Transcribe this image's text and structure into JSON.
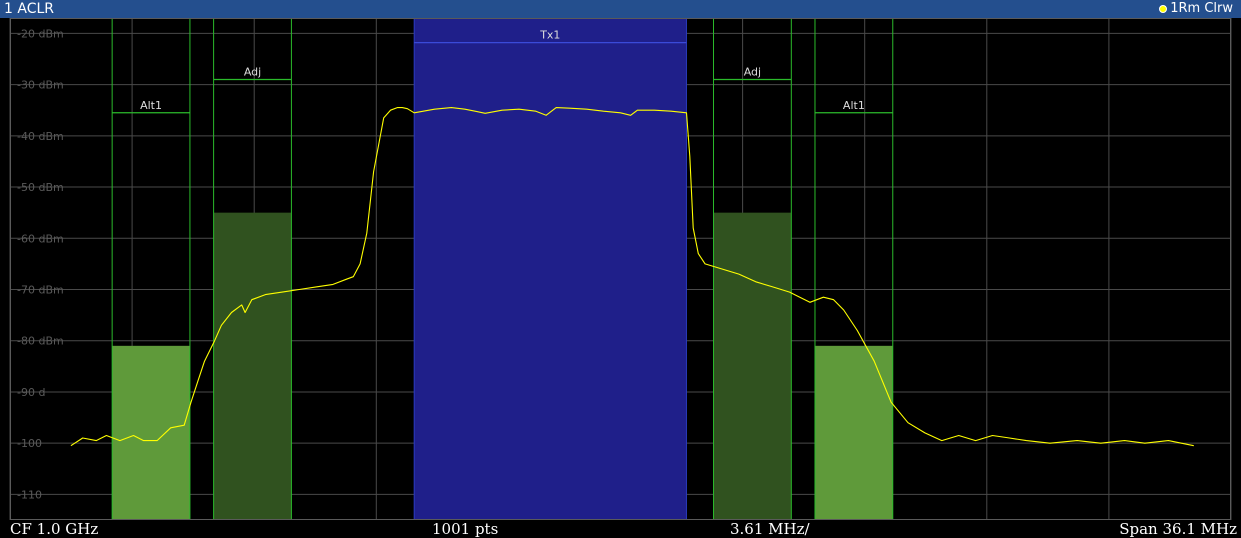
{
  "window": {
    "title": "1 ACLR",
    "trace_legend": "1Rm Clrw",
    "trace_color": "#ffff00"
  },
  "footer": {
    "center_freq": "CF 1.0 GHz",
    "points": "1001 pts",
    "per_division": "3.61 MHz/",
    "span": "Span 36.1 MHz"
  },
  "chart_data": {
    "type": "line",
    "x_unit": "MHz offset from CF",
    "xlim": [
      -18.05,
      18.05
    ],
    "ylim": [
      -115,
      -17
    ],
    "y_tick_labels": [
      {
        "value": -20,
        "text": "-20 dBm"
      },
      {
        "value": -30,
        "text": "-30 dBm"
      },
      {
        "value": -40,
        "text": "-40 dBm"
      },
      {
        "value": -50,
        "text": "-50 dBm"
      },
      {
        "value": -60,
        "text": "-60 dBm"
      },
      {
        "value": -70,
        "text": "-70 dBm"
      },
      {
        "value": -80,
        "text": "-80 dBm"
      },
      {
        "value": -90,
        "text": "-90 d"
      },
      {
        "value": -100,
        "text": "-100"
      },
      {
        "value": -110,
        "text": "-110"
      }
    ],
    "grid": true,
    "channels": [
      {
        "label": "Alt1",
        "x_min": -15.03,
        "x_max": -12.73,
        "limit_db": -35.5,
        "power_db": -81.0,
        "color": "#5f9a3a",
        "kind": "alt"
      },
      {
        "label": "Adj",
        "x_min": -12.03,
        "x_max": -9.73,
        "limit_db": -29.0,
        "power_db": -55.0,
        "color": "#30521f",
        "kind": "adj"
      },
      {
        "label": "Tx1",
        "x_min": -6.1,
        "x_max": 1.95,
        "limit_db": -21.8,
        "power_db": -17.0,
        "color": "#1f1f8a",
        "kind": "tx"
      },
      {
        "label": "Adj",
        "x_min": 2.75,
        "x_max": 5.05,
        "limit_db": -29.0,
        "power_db": -55.0,
        "color": "#30521f",
        "kind": "adj"
      },
      {
        "label": "Alt1",
        "x_min": 5.75,
        "x_max": 8.05,
        "limit_db": -35.5,
        "power_db": -81.0,
        "color": "#5f9a3a",
        "kind": "alt"
      }
    ],
    "series": [
      {
        "color": "#ffff00",
        "x": [
          -16.25,
          -15.9,
          -15.5,
          -15.2,
          -14.8,
          -14.4,
          -14.1,
          -13.7,
          -13.3,
          -12.9,
          -12.7,
          -12.5,
          -12.3,
          -12.0,
          -11.8,
          -11.5,
          -11.3,
          -11.2,
          -11.1,
          -10.9,
          -10.5,
          -10.0,
          -9.5,
          -9.0,
          -8.5,
          -8.1,
          -7.9,
          -7.7,
          -7.5,
          -7.3,
          -7.0,
          -6.8,
          -6.6,
          -6.45,
          -6.3,
          -6.1,
          -5.5,
          -5.0,
          -4.6,
          -4.3,
          -4.0,
          -3.5,
          -3.0,
          -2.5,
          -2.2,
          -1.9,
          -1.5,
          -1.0,
          -0.5,
          0.0,
          0.3,
          0.5,
          1.0,
          1.5,
          1.95,
          2.05,
          2.15,
          2.3,
          2.5,
          3.0,
          3.5,
          4.0,
          4.5,
          5.0,
          5.3,
          5.6,
          6.0,
          6.3,
          6.6,
          7.0,
          7.5,
          8.0,
          8.5,
          9.0,
          9.5,
          10.0,
          10.5,
          11.0,
          11.5,
          12.0,
          12.7,
          13.5,
          14.2,
          14.9,
          15.5,
          16.2,
          16.95
        ],
        "y": [
          -100.5,
          -99.0,
          -99.5,
          -98.5,
          -99.5,
          -98.5,
          -99.5,
          -99.5,
          -97.0,
          -96.5,
          -92.0,
          -88.0,
          -84.0,
          -80.0,
          -77.0,
          -74.5,
          -73.5,
          -73.0,
          -74.5,
          -72.0,
          -71.0,
          -70.5,
          -70.0,
          -69.5,
          -69.0,
          -68.0,
          -67.5,
          -65.0,
          -59.0,
          -47.0,
          -36.5,
          -35.0,
          -34.5,
          -34.5,
          -34.7,
          -35.5,
          -34.8,
          -34.5,
          -34.8,
          -35.2,
          -35.6,
          -35.0,
          -34.8,
          -35.2,
          -36.0,
          -34.5,
          -34.6,
          -34.8,
          -35.2,
          -35.5,
          -36.0,
          -35.0,
          -35.0,
          -35.2,
          -35.5,
          -44.0,
          -58.0,
          -63.0,
          -65.0,
          -66.0,
          -67.0,
          -68.5,
          -69.5,
          -70.5,
          -71.5,
          -72.5,
          -71.5,
          -72.0,
          -74.0,
          -78.0,
          -84.0,
          -92.0,
          -96.0,
          -98.0,
          -99.5,
          -98.5,
          -99.5,
          -98.5,
          -99.0,
          -99.5,
          -100.0,
          -99.5,
          -100.0,
          -99.5,
          -100.0,
          -99.5,
          -100.5
        ]
      }
    ]
  }
}
